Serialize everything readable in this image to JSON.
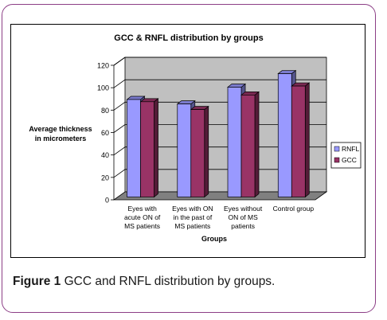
{
  "chart_data": {
    "type": "bar",
    "title": "GCC & RNFL distribution by groups",
    "xlabel": "Groups",
    "ylabel": "Average thickness in micrometers",
    "ylim": [
      0,
      120
    ],
    "yticks": [
      0,
      20,
      40,
      60,
      80,
      100,
      120
    ],
    "categories": [
      [
        "Eyes with",
        "acute ON of",
        "MS patients"
      ],
      [
        "Eyes with ON",
        "in the past of",
        "MS patients"
      ],
      [
        "Eyes without",
        "ON of MS",
        "patients"
      ],
      [
        "Control group"
      ]
    ],
    "series": [
      {
        "name": "RNFL",
        "values": [
          87,
          83,
          98,
          110
        ],
        "color": "#9999ff"
      },
      {
        "name": "GCC",
        "values": [
          85,
          78,
          91,
          99
        ],
        "color": "#993366"
      }
    ],
    "legend_position": "right",
    "wall_color": "#c0c0c0",
    "floor_color": "#808080"
  },
  "caption": {
    "label": "Figure 1",
    "text": " GCC and RNFL distribution by groups."
  }
}
